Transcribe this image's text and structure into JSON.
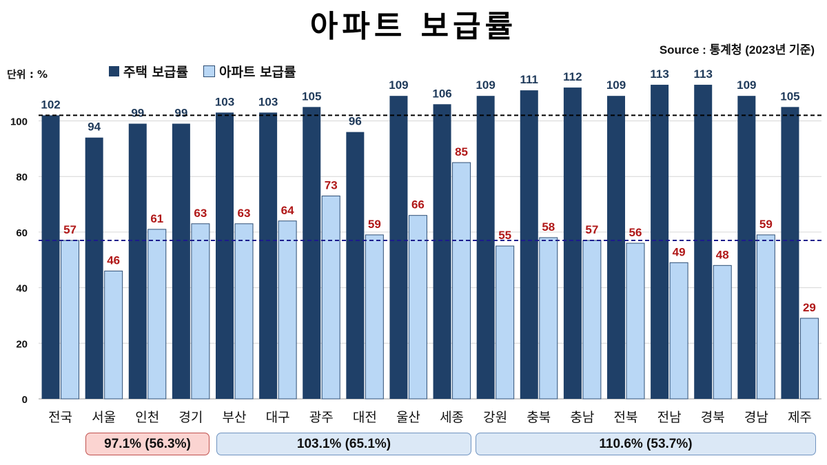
{
  "title": "아파트 보급률",
  "source": "Source : 통계청 (2023년 기준)",
  "unit_label": "단위 : %",
  "colors": {
    "housing": "#1f4068",
    "apartment": "#b9d7f5",
    "apartment_border": "#2f4f75",
    "housing_label": "#1f3a5a",
    "apartment_label": "#b01818",
    "ref_housing": "#000000",
    "ref_apartment": "#1c1c8c"
  },
  "chart_data": {
    "type": "bar",
    "categories": [
      "전국",
      "서울",
      "인천",
      "경기",
      "부산",
      "대구",
      "광주",
      "대전",
      "울산",
      "세종",
      "강원",
      "충북",
      "충남",
      "전북",
      "전남",
      "경북",
      "경남",
      "제주"
    ],
    "series": [
      {
        "name": "주택 보급률",
        "values": [
          102,
          94,
          99,
          99,
          103,
          103,
          105,
          96,
          109,
          106,
          109,
          111,
          112,
          109,
          113,
          113,
          109,
          105
        ]
      },
      {
        "name": "아파트 보급률",
        "values": [
          57,
          46,
          61,
          63,
          63,
          64,
          73,
          59,
          66,
          85,
          55,
          58,
          57,
          56,
          49,
          48,
          59,
          29
        ]
      }
    ],
    "reference_lines": [
      {
        "series": "주택 보급률",
        "value": 102,
        "style": "dashed"
      },
      {
        "series": "아파트 보급률",
        "value": 57,
        "style": "dashed"
      }
    ],
    "ylim": [
      0,
      115
    ],
    "yticks": [
      0,
      20,
      40,
      60,
      80,
      100
    ],
    "grid": true,
    "legend": "top-left"
  },
  "groups": [
    {
      "label": "97.1% (56.3%)",
      "style": "red"
    },
    {
      "label": "103.1% (65.1%)",
      "style": "blue"
    },
    {
      "label": "110.6% (53.7%)",
      "style": "blue"
    }
  ]
}
